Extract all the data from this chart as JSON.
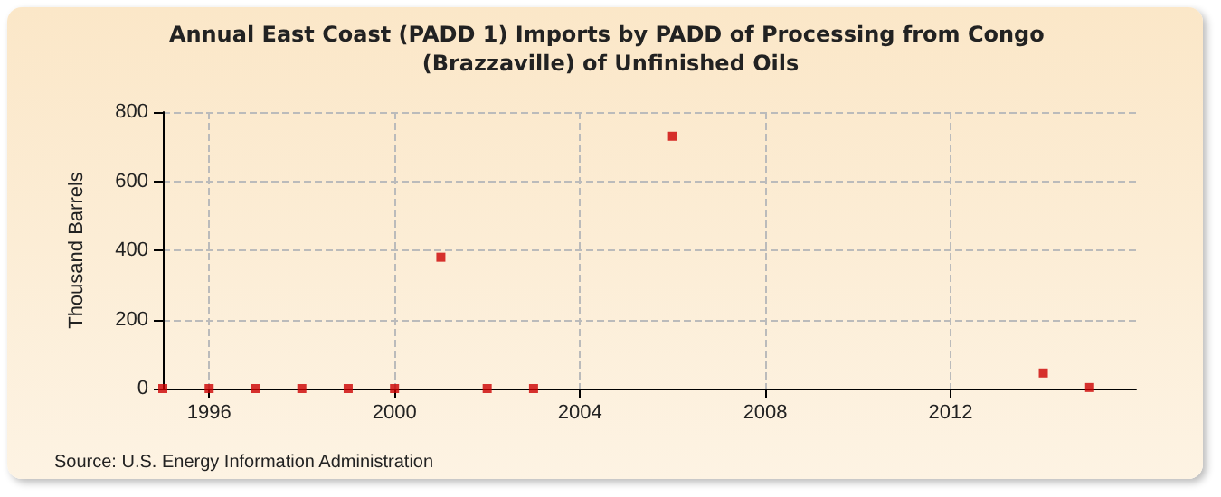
{
  "chart_data": {
    "type": "scatter",
    "title": "Annual East Coast (PADD 1) Imports by PADD of Processing from Congo (Brazzaville) of Unfinished Oils",
    "ylabel": "Thousand Barrels",
    "x": [
      1995,
      1996,
      1997,
      1998,
      1999,
      2000,
      2001,
      2002,
      2003,
      2006,
      2014,
      2015
    ],
    "series": [
      {
        "color": "#cc0000",
        "values": [
          0,
          0,
          0,
          0,
          0,
          0,
          380,
          0,
          0,
          730,
          45,
          3
        ]
      }
    ],
    "xlim": [
      1995,
      2016
    ],
    "xticks": [
      1996,
      2000,
      2004,
      2008,
      2012
    ],
    "ylim": [
      0,
      800
    ],
    "yticks": [
      0,
      200,
      400,
      600,
      800
    ],
    "grid": true,
    "marker": "square",
    "annotations": [
      "Source: U.S. Energy Information Administration"
    ]
  }
}
